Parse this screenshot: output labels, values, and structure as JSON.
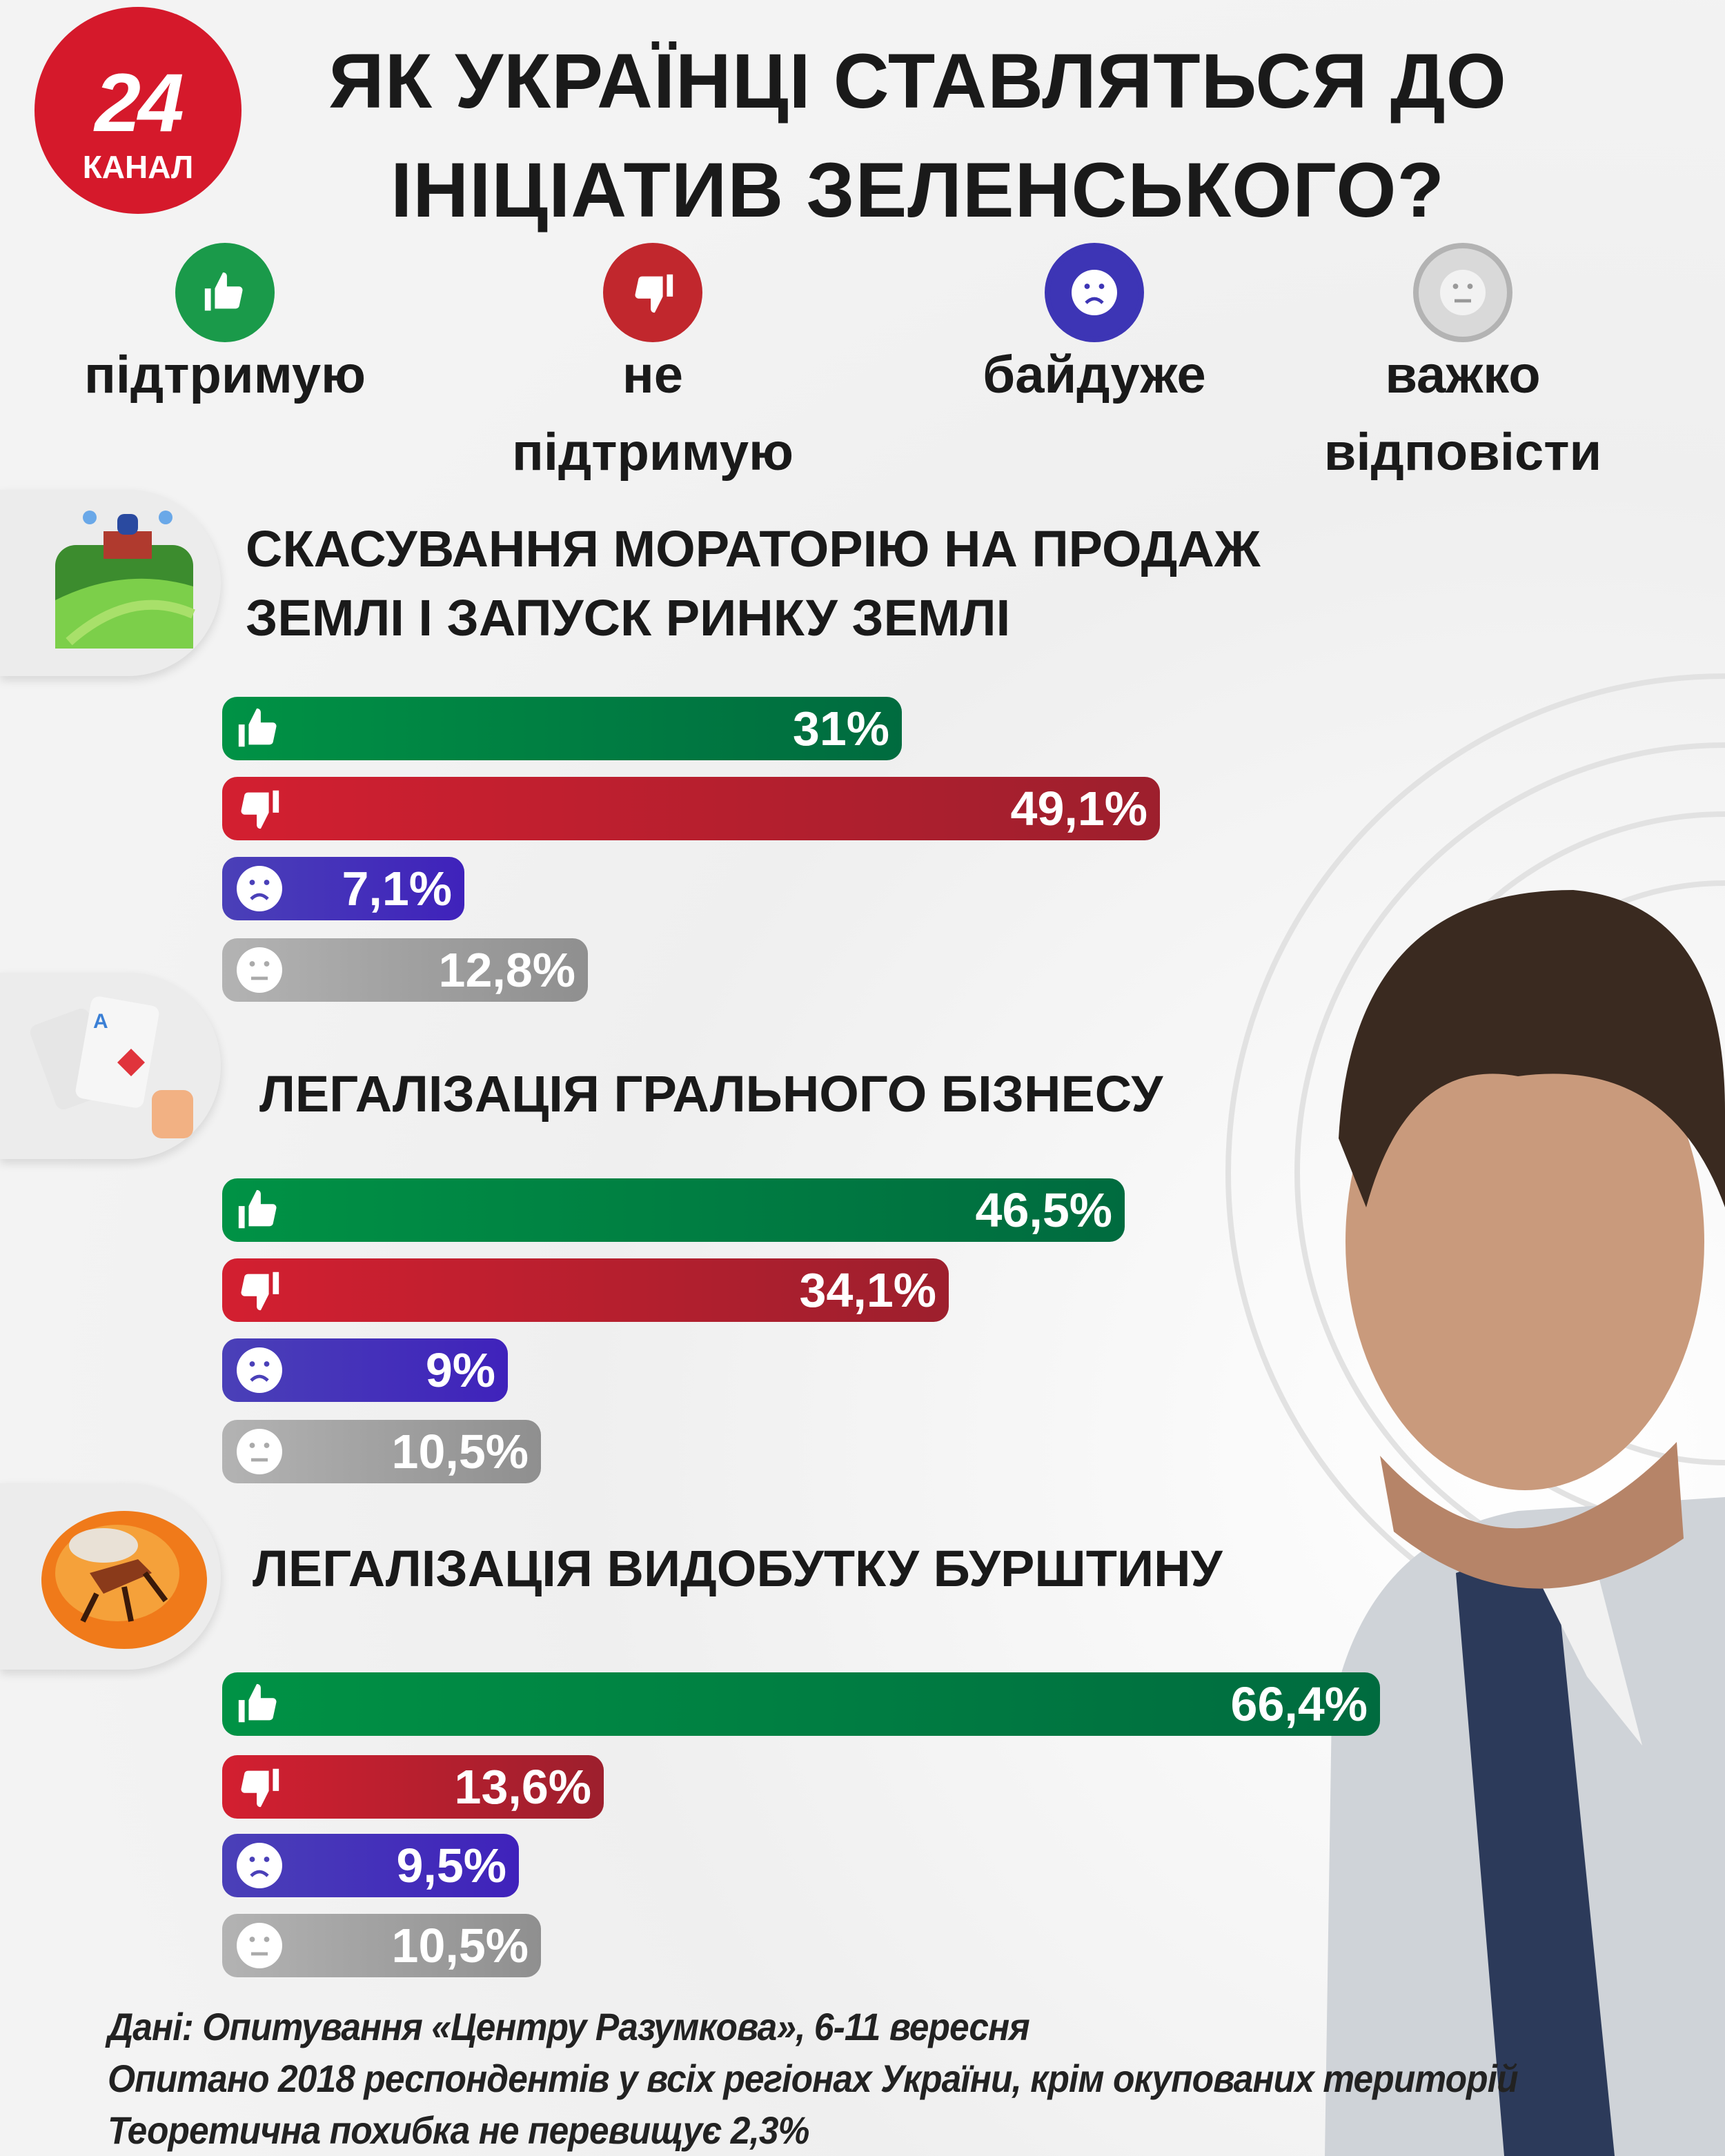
{
  "logo": {
    "number": "24",
    "text": "КАНАЛ"
  },
  "title": [
    "ЯК УКРАЇНЦІ СТАВЛЯТЬСЯ ДО",
    "ІНІЦІАТИВ ЗЕЛЕНСЬКОГО?"
  ],
  "legend": [
    {
      "icon": "thumbs-up-icon",
      "lines": [
        "підтримую"
      ],
      "color": "#1a9a4a"
    },
    {
      "icon": "thumbs-down-icon",
      "lines": [
        "не",
        "підтримую"
      ],
      "color": "#c1272d"
    },
    {
      "icon": "sad-face-icon",
      "lines": [
        "байдуже"
      ],
      "color": "#3d35b5"
    },
    {
      "icon": "neutral-face-icon",
      "lines": [
        "важко",
        "відповісти"
      ],
      "color": "#b3b3b3"
    }
  ],
  "chart_data": {
    "type": "bar",
    "orientation": "horizontal",
    "series_names": [
      "підтримую",
      "не підтримую",
      "байдуже",
      "важко відповісти"
    ],
    "groups": [
      {
        "title": [
          "СКАСУВАННЯ МОРАТОРІЮ НА ПРОДАЖ",
          "ЗЕМЛІ І ЗАПУСК РИНКУ ЗЕМЛІ"
        ],
        "icon": "farmland-icon",
        "values": [
          31,
          49.1,
          7.1,
          12.8
        ],
        "labels": [
          "31%",
          "49,1%",
          "7,1%",
          "12,8%"
        ]
      },
      {
        "title": [
          "ЛЕГАЛІЗАЦІЯ ГРАЛЬНОГО БІЗНЕСУ"
        ],
        "icon": "playing-cards-icon",
        "values": [
          46.5,
          34.1,
          9,
          10.5
        ],
        "labels": [
          "46,5%",
          "34,1%",
          "9%",
          "10,5%"
        ]
      },
      {
        "title": [
          "ЛЕГАЛІЗАЦІЯ ВИДОБУТКУ БУРШТИНУ"
        ],
        "icon": "amber-insect-icon",
        "values": [
          66.4,
          13.6,
          9.5,
          10.5
        ],
        "labels": [
          "66,4%",
          "13,6%",
          "9,5%",
          "10,5%"
        ]
      }
    ],
    "unit": "%"
  },
  "footer": [
    "Дані: Опитування «Центру Разумкова», 6-11 вересня",
    "Опитано 2018 респондентів у всіх регіонах України, крім окупованих територій",
    "Теоретична похибка не перевищує 2,3%"
  ]
}
